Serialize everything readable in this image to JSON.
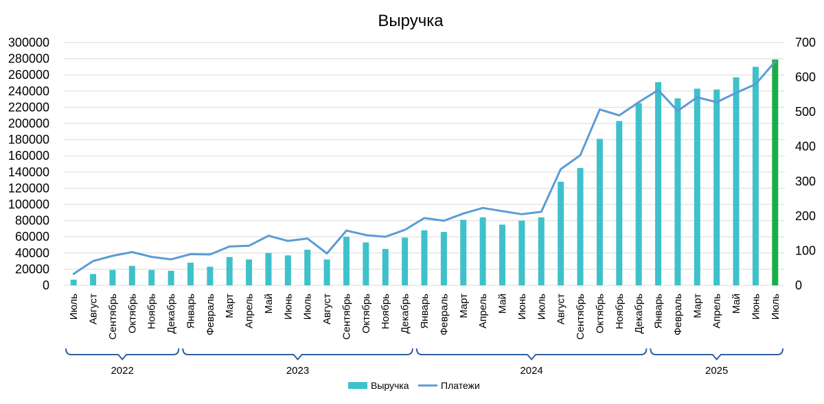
{
  "chart_data": {
    "type": "bar",
    "title": "Выручка",
    "categories": [
      "Июль",
      "Август",
      "Сентябрь",
      "Октябрь",
      "Ноябрь",
      "Декабрь",
      "Январь",
      "Февраль",
      "Март",
      "Апрель",
      "Май",
      "Июнь",
      "Июль",
      "Август",
      "Сентябрь",
      "Октябрь",
      "Ноябрь",
      "Декабрь",
      "Январь",
      "Февраль",
      "Март",
      "Апрель",
      "Май",
      "Июнь",
      "Июль",
      "Август",
      "Сентябрь",
      "Октябрь",
      "Ноябрь",
      "Декабрь",
      "Январь",
      "Февраль",
      "Март",
      "Апрель",
      "Май",
      "Июнь",
      "Июль"
    ],
    "year_groups": [
      {
        "label": "2022",
        "start": 0,
        "end": 5
      },
      {
        "label": "2023",
        "start": 6,
        "end": 17
      },
      {
        "label": "2024",
        "start": 18,
        "end": 29
      },
      {
        "label": "2025",
        "start": 30,
        "end": 36
      }
    ],
    "series": [
      {
        "name": "Выручка",
        "type": "bar",
        "axis": "left",
        "color": "#3EC1CB",
        "highlight_last_color": "#1AAE4B",
        "values": [
          7000,
          14000,
          19000,
          24000,
          19000,
          18000,
          28000,
          23000,
          35000,
          32000,
          40000,
          37000,
          44000,
          32000,
          60000,
          53000,
          45000,
          59000,
          68000,
          66000,
          81000,
          84000,
          75000,
          80000,
          84000,
          128000,
          145000,
          181000,
          203000,
          225000,
          251000,
          231000,
          243000,
          242000,
          257000,
          270000,
          279000
        ]
      },
      {
        "name": "Платежи",
        "type": "line",
        "axis": "right",
        "color": "#5B9BD5",
        "values": [
          33,
          70,
          85,
          96,
          82,
          75,
          90,
          89,
          112,
          114,
          143,
          128,
          135,
          92,
          158,
          145,
          140,
          160,
          194,
          186,
          207,
          223,
          214,
          205,
          212,
          335,
          375,
          507,
          490,
          528,
          563,
          503,
          542,
          528,
          555,
          580,
          645
        ]
      }
    ],
    "yticks_left": [
      "300000",
      "280000",
      "260000",
      "240000",
      "220000",
      "200000",
      "180000",
      "160000",
      "140000",
      "120000",
      "100000",
      "80000",
      "60000",
      "40000",
      "20000",
      "0"
    ],
    "yticks_right": [
      "700",
      "600",
      "500",
      "400",
      "300",
      "200",
      "100",
      "0"
    ],
    "ylim_left": [
      0,
      300000
    ],
    "ylim_right": [
      0,
      700
    ],
    "grid": true,
    "legend": {
      "position": "bottom",
      "items": [
        "Выручка",
        "Платежи"
      ]
    }
  }
}
